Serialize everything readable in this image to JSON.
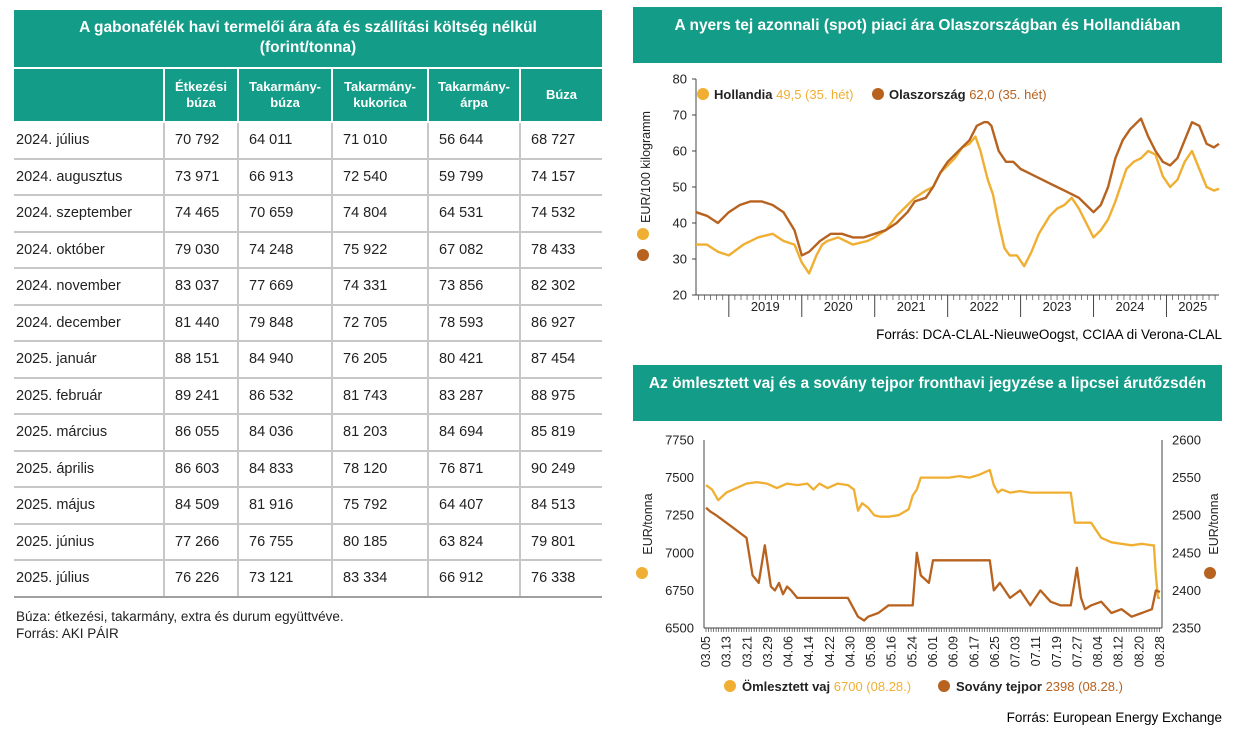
{
  "table": {
    "title": "A gabonafélék havi termelői ára áfa és szállítási költség nélkül (forint/tonna)",
    "headers": [
      "",
      "Étkezési\nbúza",
      "Takarmány-\nbúza",
      "Takarmány-\nkukorica",
      "Takarmány-\nárpa",
      "Búza"
    ],
    "rows": [
      [
        "2024. július",
        "70 792",
        "64 011",
        "71 010",
        "56 644",
        "68 727"
      ],
      [
        "2024. augusztus",
        "73 971",
        "66 913",
        "72 540",
        "59 799",
        "74 157"
      ],
      [
        "2024. szeptember",
        "74 465",
        "70 659",
        "74 804",
        "64 531",
        "74 532"
      ],
      [
        "2024. október",
        "79 030",
        "74 248",
        "75 922",
        "67 082",
        "78 433"
      ],
      [
        "2024. november",
        "83 037",
        "77 669",
        "74 331",
        "73 856",
        "82 302"
      ],
      [
        "2024. december",
        "81 440",
        "79 848",
        "72 705",
        "78 593",
        "86 927"
      ],
      [
        "2025. január",
        "88 151",
        "84 940",
        "76 205",
        "80 421",
        "87 454"
      ],
      [
        "2025. február",
        "89 241",
        "86 532",
        "81 743",
        "83 287",
        "88 975"
      ],
      [
        "2025. március",
        "86 055",
        "84 036",
        "81 203",
        "84 694",
        "85 819"
      ],
      [
        "2025. április",
        "86 603",
        "84 833",
        "78 120",
        "76 871",
        "90 249"
      ],
      [
        "2025. május",
        "84 509",
        "81 916",
        "75 792",
        "64 407",
        "84 513"
      ],
      [
        "2025. június",
        "77 266",
        "76 755",
        "80 185",
        "63 824",
        "79 801"
      ],
      [
        "2025. július",
        "76 226",
        "73 121",
        "83 334",
        "66 912",
        "76 338"
      ]
    ],
    "note1": "Búza: étkezési, takarmány, extra és durum együttvéve.",
    "note2": "Forrás: AKI PÁIR"
  },
  "colors": {
    "teal": "#139C87",
    "light": "#F0AF32",
    "dark": "#B8621F",
    "axis": "#444444"
  },
  "chart_data": [
    {
      "type": "line",
      "title": "A nyers tej azonnali (spot) piaci ára Olaszországban és Hollandiában",
      "ylabel": "EUR/100 kilogramm",
      "ylim": [
        20,
        80
      ],
      "yticks": [
        20,
        30,
        40,
        50,
        60,
        70,
        80
      ],
      "xlim": [
        2018.55,
        2025.72
      ],
      "xticks": [
        "2019",
        "2020",
        "2021",
        "2022",
        "2023",
        "2024",
        "2025"
      ],
      "source": "Forrás: DCA-CLAL-NieuweOogst, CCIAA di Verona-CLAL",
      "series": [
        {
          "name": "Hollandia",
          "legend_value": "49,5 (35. hét)",
          "color": "light",
          "x": [
            2018.55,
            2018.7,
            2018.85,
            2019.0,
            2019.2,
            2019.4,
            2019.6,
            2019.75,
            2019.9,
            2020.0,
            2020.1,
            2020.2,
            2020.28,
            2020.35,
            2020.5,
            2020.7,
            2020.9,
            2021.0,
            2021.15,
            2021.3,
            2021.45,
            2021.55,
            2021.7,
            2021.8,
            2021.9,
            2022.0,
            2022.1,
            2022.2,
            2022.3,
            2022.38,
            2022.45,
            2022.5,
            2022.55,
            2022.62,
            2022.7,
            2022.78,
            2022.85,
            2022.95,
            2023.05,
            2023.15,
            2023.25,
            2023.4,
            2023.5,
            2023.6,
            2023.7,
            2023.8,
            2023.9,
            2024.0,
            2024.1,
            2024.2,
            2024.3,
            2024.45,
            2024.55,
            2024.65,
            2024.75,
            2024.85,
            2024.95,
            2025.05,
            2025.15,
            2025.25,
            2025.35,
            2025.45,
            2025.55,
            2025.65,
            2025.72
          ],
          "y": [
            34,
            34,
            32,
            31,
            34,
            36,
            37,
            35,
            34,
            29,
            26,
            31,
            34,
            35,
            36,
            34,
            35,
            36,
            38,
            42,
            45,
            47,
            49,
            50,
            54,
            56,
            58,
            61,
            62,
            64,
            60,
            56,
            52,
            48,
            40,
            33,
            31,
            31,
            28,
            32,
            37,
            42,
            44,
            45,
            47,
            44,
            40,
            36,
            38,
            41,
            46,
            55,
            57,
            58,
            60,
            59,
            53,
            50,
            52,
            57,
            60,
            55,
            50,
            49,
            49.5
          ]
        },
        {
          "name": "Olaszország",
          "legend_value": "62,0 (35. hét)",
          "color": "dark",
          "x": [
            2018.55,
            2018.7,
            2018.85,
            2019.0,
            2019.15,
            2019.3,
            2019.45,
            2019.6,
            2019.75,
            2019.9,
            2020.0,
            2020.1,
            2020.25,
            2020.4,
            2020.55,
            2020.7,
            2020.85,
            2021.0,
            2021.15,
            2021.3,
            2021.45,
            2021.55,
            2021.7,
            2021.8,
            2021.9,
            2022.0,
            2022.1,
            2022.2,
            2022.3,
            2022.4,
            2022.5,
            2022.55,
            2022.6,
            2022.7,
            2022.8,
            2022.9,
            2023.0,
            2023.1,
            2023.2,
            2023.3,
            2023.4,
            2023.5,
            2023.6,
            2023.7,
            2023.8,
            2023.9,
            2024.0,
            2024.1,
            2024.2,
            2024.3,
            2024.4,
            2024.5,
            2024.6,
            2024.65,
            2024.75,
            2024.85,
            2024.95,
            2025.05,
            2025.15,
            2025.25,
            2025.35,
            2025.45,
            2025.55,
            2025.65,
            2025.72
          ],
          "y": [
            43,
            42,
            40,
            43,
            45,
            46,
            46,
            45,
            43,
            38,
            31,
            32,
            35,
            37,
            37,
            36,
            36,
            37,
            38,
            40,
            43,
            46,
            47,
            50,
            54,
            57,
            59,
            61,
            63,
            67,
            68,
            68,
            67,
            60,
            57,
            57,
            55,
            54,
            53,
            52,
            51,
            50,
            49,
            48,
            47,
            45,
            43,
            45,
            50,
            58,
            63,
            66,
            68,
            69,
            64,
            60,
            57,
            56,
            58,
            63,
            68,
            67,
            62,
            61,
            62
          ]
        }
      ]
    },
    {
      "type": "line",
      "title": "Az ömlesztett vaj és a sovány tejpor fronthavi jegyzése a lipcsei árutőzsdén",
      "ylabel_left": "EUR/tonna",
      "ylabel_right": "EUR/tonna",
      "ylim_left": [
        6500,
        7750
      ],
      "yticks_left": [
        6500,
        6750,
        7000,
        7250,
        7500,
        7750
      ],
      "ylim_right": [
        2350,
        2600
      ],
      "yticks_right": [
        2350,
        2400,
        2450,
        2500,
        2550,
        2600
      ],
      "xticks": [
        "03.05",
        "03.13",
        "03.21",
        "03.29",
        "04.06",
        "04.14",
        "04.22",
        "04.30",
        "05.08",
        "05.16",
        "05.24",
        "06.01",
        "06.09",
        "06.17",
        "06.25",
        "07.03",
        "07.11",
        "07.19",
        "07.27",
        "08.04",
        "08.12",
        "08.20",
        "08.28"
      ],
      "source": "Forrás: European Energy Exchange",
      "series": [
        {
          "name": "Ömlesztett vaj",
          "legend_value": "6700 (08.28.)",
          "axis": "left",
          "color": "light",
          "x": [
            0,
            0.3,
            0.6,
            1,
            1.5,
            2,
            2.5,
            3,
            3.5,
            4,
            4.5,
            5,
            5.3,
            5.6,
            6,
            6.5,
            7,
            7.3,
            7.5,
            7.7,
            8,
            8.3,
            8.6,
            9,
            9.5,
            10,
            10.2,
            10.4,
            10.6,
            11,
            11.5,
            12,
            12.5,
            13,
            13.5,
            14,
            14.2,
            14.4,
            14.6,
            15,
            15.5,
            16,
            16.5,
            17,
            17.5,
            18,
            18.2,
            18.4,
            18.6,
            19,
            19.5,
            20,
            20.5,
            21,
            21.5,
            22,
            22.1,
            22.2,
            22.3,
            22.4
          ],
          "y": [
            7450,
            7420,
            7350,
            7400,
            7430,
            7460,
            7470,
            7460,
            7430,
            7460,
            7450,
            7460,
            7420,
            7460,
            7430,
            7460,
            7450,
            7420,
            7280,
            7330,
            7300,
            7250,
            7240,
            7240,
            7250,
            7290,
            7380,
            7420,
            7500,
            7500,
            7500,
            7500,
            7510,
            7500,
            7520,
            7550,
            7450,
            7400,
            7420,
            7400,
            7410,
            7400,
            7400,
            7400,
            7400,
            7400,
            7200,
            7200,
            7200,
            7200,
            7100,
            7070,
            7060,
            7050,
            7060,
            7050,
            7050,
            6850,
            6700,
            6700
          ]
        },
        {
          "name": "Sovány tejpor",
          "legend_value": "2398 (08.28.)",
          "axis": "right",
          "color": "dark",
          "x": [
            0,
            0.2,
            0.5,
            1,
            1.5,
            2,
            2.3,
            2.6,
            2.9,
            3.2,
            3.4,
            3.6,
            3.8,
            4,
            4.2,
            4.5,
            5,
            5.5,
            6,
            6.5,
            7,
            7.5,
            7.8,
            8,
            8.5,
            9,
            9.5,
            10,
            10.2,
            10.4,
            10.6,
            11,
            11.2,
            11.4,
            11.6,
            12,
            12.5,
            13,
            13.5,
            14,
            14.2,
            14.5,
            15,
            15.5,
            16,
            16.5,
            17,
            17.5,
            18,
            18.3,
            18.5,
            18.7,
            19,
            19.5,
            20,
            20.5,
            21,
            21.5,
            22,
            22.2,
            22.4
          ],
          "y": [
            2510,
            2505,
            2500,
            2490,
            2480,
            2470,
            2420,
            2410,
            2460,
            2405,
            2400,
            2410,
            2395,
            2405,
            2400,
            2390,
            2390,
            2390,
            2390,
            2390,
            2390,
            2365,
            2360,
            2365,
            2370,
            2380,
            2380,
            2380,
            2380,
            2450,
            2420,
            2410,
            2440,
            2440,
            2440,
            2440,
            2440,
            2440,
            2440,
            2440,
            2400,
            2410,
            2390,
            2400,
            2380,
            2400,
            2385,
            2380,
            2380,
            2430,
            2390,
            2375,
            2380,
            2385,
            2370,
            2375,
            2365,
            2370,
            2375,
            2400,
            2398
          ]
        }
      ]
    }
  ]
}
